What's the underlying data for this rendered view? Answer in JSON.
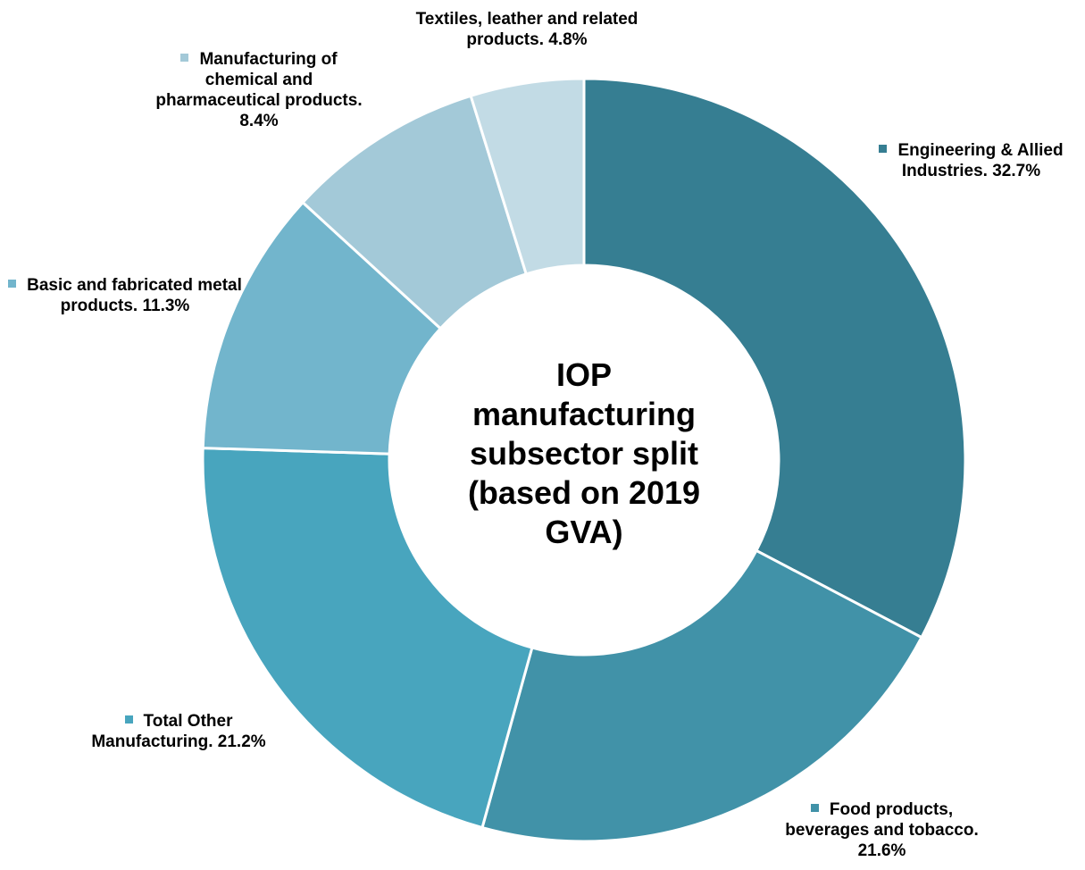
{
  "chart_data": {
    "type": "donut",
    "title": "IOP manufacturing subsector split (based on 2019 GVA)",
    "categories": [
      "Engineering & Allied Industries.",
      "Food products, beverages and tobacco.",
      "Total Other Manufacturing.",
      "Basic and fabricated metal products.",
      "Manufacturing of chemical and pharmaceutical products.",
      "Textiles, leather and related products."
    ],
    "values": [
      32.7,
      21.6,
      21.2,
      11.3,
      8.4,
      4.8
    ],
    "value_labels": [
      "32.7%",
      "21.6%",
      "21.2%",
      "11.3%",
      "8.4%",
      "4.8%"
    ],
    "colors": [
      "#367e92",
      "#4192a8",
      "#48a5be",
      "#72b5cc",
      "#a3c9d8",
      "#c2dbe5"
    ]
  }
}
